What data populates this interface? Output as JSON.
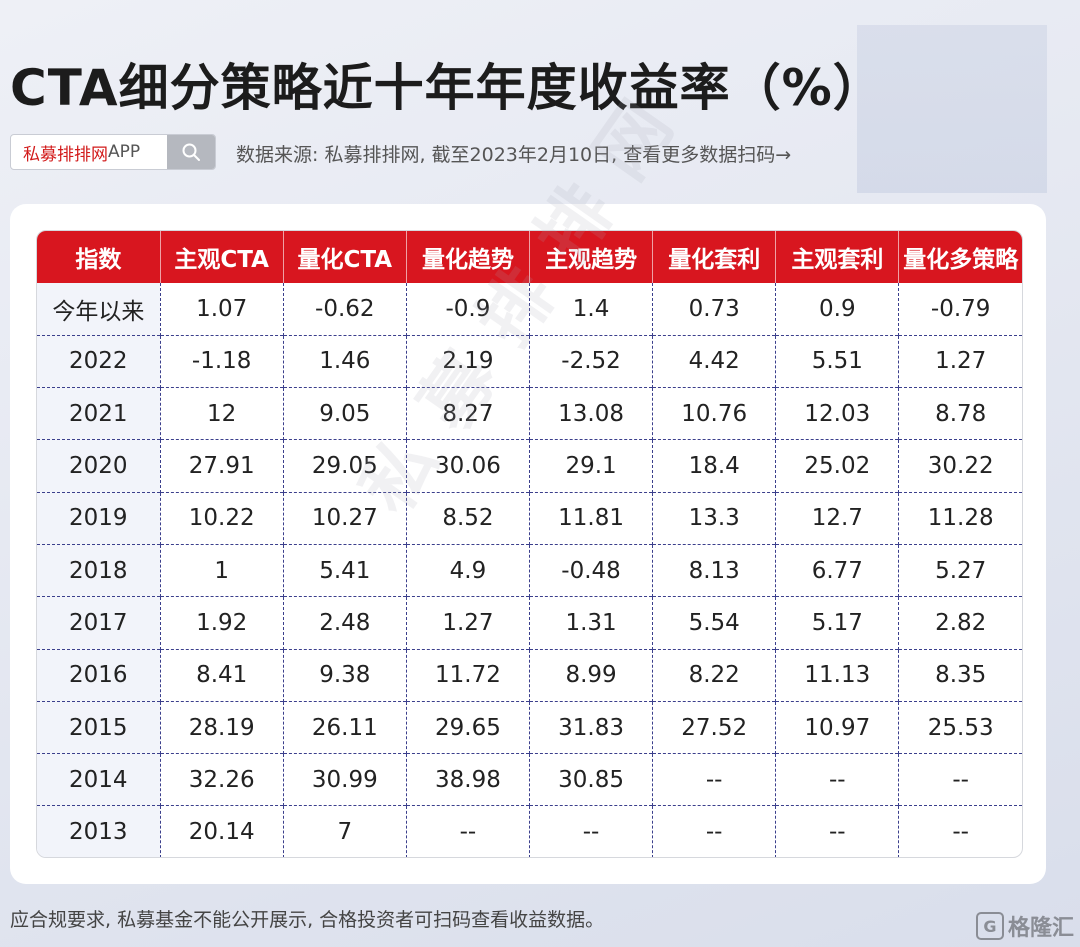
{
  "title": "CTA细分策略近十年年度收益率（%）",
  "search": {
    "brand": "私募排排网",
    "suffix": "APP"
  },
  "source": "数据来源: 私募排排网, 截至2023年2月10日, 查看更多数据扫码→",
  "table": {
    "headers": [
      "指数",
      "主观CTA",
      "量化CTA",
      "量化趋势",
      "主观趋势",
      "量化套利",
      "主观套利",
      "量化多策略"
    ],
    "rows": [
      [
        "今年以来",
        "1.07",
        "-0.62",
        "-0.9",
        "1.4",
        "0.73",
        "0.9",
        "-0.79"
      ],
      [
        "2022",
        "-1.18",
        "1.46",
        "2.19",
        "-2.52",
        "4.42",
        "5.51",
        "1.27"
      ],
      [
        "2021",
        "12",
        "9.05",
        "8.27",
        "13.08",
        "10.76",
        "12.03",
        "8.78"
      ],
      [
        "2020",
        "27.91",
        "29.05",
        "30.06",
        "29.1",
        "18.4",
        "25.02",
        "30.22"
      ],
      [
        "2019",
        "10.22",
        "10.27",
        "8.52",
        "11.81",
        "13.3",
        "12.7",
        "11.28"
      ],
      [
        "2018",
        "1",
        "5.41",
        "4.9",
        "-0.48",
        "8.13",
        "6.77",
        "5.27"
      ],
      [
        "2017",
        "1.92",
        "2.48",
        "1.27",
        "1.31",
        "5.54",
        "5.17",
        "2.82"
      ],
      [
        "2016",
        "8.41",
        "9.38",
        "11.72",
        "8.99",
        "8.22",
        "11.13",
        "8.35"
      ],
      [
        "2015",
        "28.19",
        "26.11",
        "29.65",
        "31.83",
        "27.52",
        "10.97",
        "25.53"
      ],
      [
        "2014",
        "32.26",
        "30.99",
        "38.98",
        "30.85",
        "--",
        "--",
        "--"
      ],
      [
        "2013",
        "20.14",
        "7",
        "--",
        "--",
        "--",
        "--",
        "--"
      ]
    ]
  },
  "watermark": "私募排排网",
  "footer": "应合规要求, 私募基金不能公开展示, 合格投资者可扫码查看收益数据。",
  "logo": {
    "mark": "G",
    "text": "格隆汇"
  },
  "icons": {
    "search": "search-icon"
  },
  "colors": {
    "header_red": "#d8161f",
    "brand_red": "#d21a1a"
  }
}
